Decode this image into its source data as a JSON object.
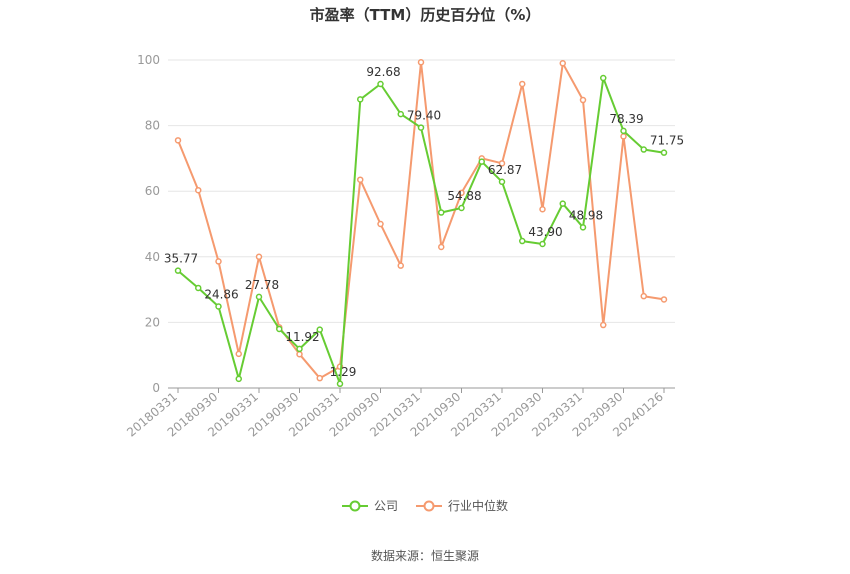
{
  "chart_data": {
    "type": "line",
    "title": "市盈率（TTM）历史百分位（%）",
    "ylim": [
      0,
      100
    ],
    "yticks": [
      0,
      20,
      40,
      60,
      80,
      100
    ],
    "x": [
      "20180331",
      "20180630",
      "20180930",
      "20181231",
      "20190331",
      "20190630",
      "20190930",
      "20191231",
      "20200331",
      "20200630",
      "20200930",
      "20201231",
      "20210331",
      "20210630",
      "20210930",
      "20211231",
      "20220331",
      "20220630",
      "20220930",
      "20221231",
      "20230331",
      "20230630",
      "20230930",
      "20231231",
      "20240126"
    ],
    "x_tick_labels": [
      "20180331",
      "20180930",
      "20190331",
      "20190930",
      "20200331",
      "20200930",
      "20210331",
      "20210930",
      "20220331",
      "20220930",
      "20230331",
      "20230930",
      "20240126"
    ],
    "series": [
      {
        "name": "公司",
        "color": "#66cc33",
        "values": [
          35.77,
          30.5,
          24.86,
          2.8,
          27.78,
          18.0,
          11.92,
          17.8,
          1.29,
          88.0,
          92.68,
          83.5,
          79.4,
          53.5,
          54.88,
          69.0,
          62.87,
          44.8,
          43.9,
          56.2,
          48.98,
          94.5,
          78.39,
          72.7,
          71.75
        ],
        "labels": {
          "0": "35.77",
          "2": "24.86",
          "4": "27.78",
          "6": "11.92",
          "8": "1.29",
          "10": "92.68",
          "12": "79.40",
          "14": "54.88",
          "16": "62.87",
          "18": "43.90",
          "20": "48.98",
          "22": "78.39",
          "24": "71.75"
        }
      },
      {
        "name": "行业中位数",
        "color": "#f59a6f",
        "values": [
          75.5,
          60.3,
          38.6,
          10.4,
          40.0,
          18.5,
          10.3,
          3.0,
          6.5,
          63.5,
          50.0,
          37.3,
          99.3,
          43.0,
          59.5,
          70.0,
          68.5,
          92.7,
          54.5,
          99.0,
          87.8,
          19.2,
          76.7,
          28.0,
          27.0
        ]
      }
    ],
    "legend_position": "bottom",
    "grid": true
  },
  "source": "数据来源：恒生聚源"
}
